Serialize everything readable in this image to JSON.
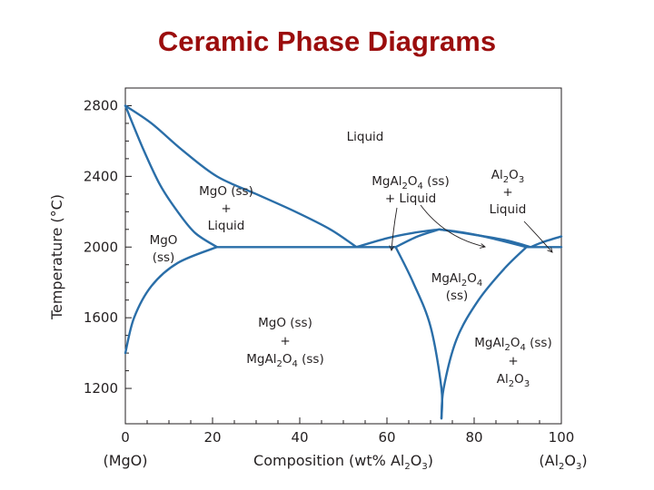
{
  "slide": {
    "title": "Ceramic Phase Diagrams"
  },
  "chart_data": {
    "type": "phase-diagram",
    "xlabel": "Composition (wt% Al₂O₃)",
    "ylabel": "Temperature (°C)",
    "xlim": [
      0,
      100
    ],
    "ylim": [
      1000,
      2900
    ],
    "xticks": [
      0,
      20,
      40,
      60,
      80,
      100
    ],
    "yticks": [
      1200,
      1600,
      2000,
      2400,
      2800
    ],
    "endpoint_labels": {
      "left": "(MgO)",
      "right": "(Al₂O₃)"
    },
    "grid": false,
    "line_color": "#2a6ea8",
    "phase_boundaries": [
      {
        "name": "liquidus-mgo",
        "points": [
          [
            0,
            2800
          ],
          [
            6,
            2700
          ],
          [
            13,
            2550
          ],
          [
            21,
            2400
          ],
          [
            30,
            2300
          ],
          [
            39,
            2200
          ],
          [
            47,
            2100
          ],
          [
            53,
            2000
          ]
        ]
      },
      {
        "name": "solidus-mgo",
        "points": [
          [
            0,
            2800
          ],
          [
            4,
            2560
          ],
          [
            8,
            2350
          ],
          [
            12,
            2200
          ],
          [
            16,
            2080
          ],
          [
            21,
            2000
          ]
        ]
      },
      {
        "name": "solvus-mgo",
        "points": [
          [
            0,
            1400
          ],
          [
            2,
            1600
          ],
          [
            6,
            1780
          ],
          [
            12,
            1910
          ],
          [
            21,
            2000
          ]
        ]
      },
      {
        "name": "eutectic-isotherm-1",
        "points": [
          [
            21,
            2000
          ],
          [
            62,
            2000
          ]
        ]
      },
      {
        "name": "liquidus-spinel-left",
        "points": [
          [
            53,
            2000
          ],
          [
            60,
            2050
          ],
          [
            66,
            2080
          ],
          [
            72,
            2100
          ]
        ]
      },
      {
        "name": "solidus-spinel-left",
        "points": [
          [
            62,
            2000
          ],
          [
            67,
            2060
          ],
          [
            72,
            2100
          ]
        ]
      },
      {
        "name": "liquidus-spinel-right",
        "points": [
          [
            72,
            2100
          ],
          [
            80,
            2070
          ],
          [
            87,
            2040
          ],
          [
            93,
            2000
          ]
        ]
      },
      {
        "name": "solidus-spinel-right",
        "points": [
          [
            72,
            2100
          ],
          [
            78,
            2080
          ],
          [
            84,
            2050
          ],
          [
            92,
            2000
          ]
        ]
      },
      {
        "name": "liquidus-al2o3",
        "points": [
          [
            93,
            2000
          ],
          [
            96,
            2030
          ],
          [
            100,
            2060
          ]
        ]
      },
      {
        "name": "eutectic-isotherm-2",
        "points": [
          [
            92,
            2000
          ],
          [
            100,
            2000
          ]
        ]
      },
      {
        "name": "solvus-spinel-left",
        "points": [
          [
            62,
            2000
          ],
          [
            66,
            1800
          ],
          [
            70,
            1550
          ],
          [
            72.5,
            1200
          ],
          [
            72.5,
            1030
          ]
        ]
      },
      {
        "name": "solvus-spinel-right",
        "points": [
          [
            72.5,
            1030
          ],
          [
            73,
            1200
          ],
          [
            76,
            1480
          ],
          [
            81,
            1700
          ],
          [
            87,
            1880
          ],
          [
            92,
            2000
          ]
        ]
      }
    ],
    "region_labels": [
      {
        "name": "liquid",
        "lines": [
          "Liquid"
        ]
      },
      {
        "name": "mgo-ss-liquid",
        "lines": [
          "MgO (ss)",
          "+",
          "Liquid"
        ]
      },
      {
        "name": "mgo-ss",
        "lines": [
          "MgO",
          "(ss)"
        ]
      },
      {
        "name": "spinel-liquid",
        "lines": [
          "MgAl₂O₄ (ss)",
          "+ Liquid"
        ]
      },
      {
        "name": "al2o3-liquid",
        "lines": [
          "Al₂O₃",
          "+",
          "Liquid"
        ]
      },
      {
        "name": "spinel-ss",
        "lines": [
          "MgAl₂O₄",
          "(ss)"
        ]
      },
      {
        "name": "mgo-spinel",
        "lines": [
          "MgO (ss)",
          "+",
          "MgAl₂O₄ (ss)"
        ]
      },
      {
        "name": "spinel-al2o3",
        "lines": [
          "MgAl₂O₄ (ss)",
          "+",
          "Al₂O₃"
        ]
      }
    ]
  }
}
